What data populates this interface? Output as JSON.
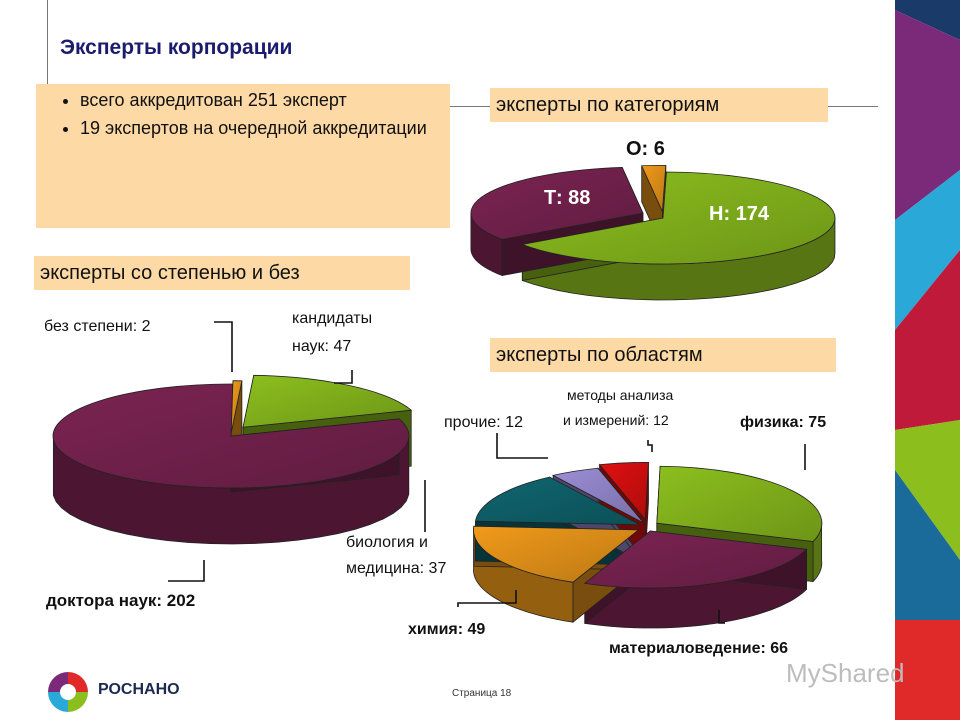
{
  "header": {
    "title": "Эксперты корпорации"
  },
  "summary": {
    "items": [
      "всего аккредитован 251 эксперт",
      "19 экспертов на очередной аккредитации"
    ]
  },
  "sections": {
    "categories": "эксперты по категориям",
    "degree": "эксперты со степенью и без",
    "fields": "эксперты по областям"
  },
  "chart_data": [
    {
      "type": "pie",
      "title": "эксперты по категориям",
      "slices": [
        {
          "label": "Н: 174",
          "value": 174,
          "color": "#8cbf1e"
        },
        {
          "label": "Т: 88",
          "value": 88,
          "color": "#7b2452"
        },
        {
          "label": "О: 6",
          "value": 6,
          "color": "#f09a1a"
        }
      ]
    },
    {
      "type": "pie",
      "title": "эксперты со степенью и без",
      "slices": [
        {
          "label": "кандидаты наук: 47",
          "value": 47,
          "color": "#8cbf1e"
        },
        {
          "label": "доктора наук: 202",
          "value": 202,
          "color": "#7b2452"
        },
        {
          "label": "без степени: 2",
          "value": 2,
          "color": "#f09a1a"
        }
      ]
    },
    {
      "type": "pie",
      "title": "эксперты по областям",
      "slices": [
        {
          "label": "физика: 75",
          "value": 75,
          "color": "#8cbf1e"
        },
        {
          "label": "материаловедение: 66",
          "value": 66,
          "color": "#7b2452"
        },
        {
          "label": "химия: 49",
          "value": 49,
          "color": "#f09a1a"
        },
        {
          "label": "биология и медицина: 37",
          "value": 37,
          "color": "#0f6670"
        },
        {
          "label": "прочие: 12",
          "value": 12,
          "color": "#9b8ed6"
        },
        {
          "label": "методы анализа и измерений: 12",
          "value": 12,
          "color": "#e01010"
        }
      ]
    }
  ],
  "labels": {
    "c1_n": "Н: 174",
    "c1_t": "Т: 88",
    "c1_o": "О: 6",
    "c2_kand1": "кандидаты",
    "c2_kand2": "наук: 47",
    "c2_none": "без степени: 2",
    "c2_doc": "доктора наук: 202",
    "c3_phys": "физика: 75",
    "c3_mat": "материаловедение: 66",
    "c3_chem": "химия: 49",
    "c3_bio1": "биология и",
    "c3_bio2": "медицина: 37",
    "c3_other": "прочие: 12",
    "c3_meth1": "методы анализа",
    "c3_meth2": "и измерений: 12"
  },
  "footer": {
    "logo": "РОСНАНО",
    "page": "Страница 18",
    "watermark": "MyShared"
  },
  "stripe_colors": [
    "#1a3a6a",
    "#7a2a78",
    "#2aa8d8",
    "#c01a3a",
    "#8cbf1e",
    "#1a6a9a",
    "#e02a2a",
    "#7a2a78"
  ]
}
